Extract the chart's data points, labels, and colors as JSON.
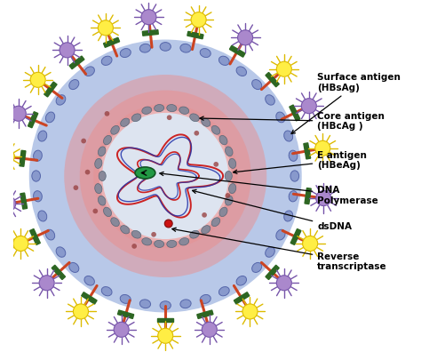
{
  "bg_color": "#ffffff",
  "outer_fill_color": "#b8c8e8",
  "outer_bead_color": "#8899cc",
  "outer_bead_edge": "#5566aa",
  "pink_glow_color": "#e89090",
  "pink_glow2_color": "#f0b8b8",
  "capsid_interior_color": "#dde4f0",
  "capsid_bead_color": "#888899",
  "capsid_bead_edge": "#556677",
  "dna_color1": "#cc2222",
  "dna_color2": "#2233aa",
  "green_dot_color": "#229944",
  "green_dot_edge": "#115522",
  "red_dot_color": "#cc1111",
  "red_dot_edge": "#881111",
  "spike_stem_color": "#cc4422",
  "spike_green_color": "#2d6622",
  "spike_yellow_color": "#ddbb00",
  "spike_yellow_center": "#ffee44",
  "spike_purple_color": "#7755aa",
  "spike_purple_center": "#aa88cc",
  "small_dot_color": "#994444",
  "labels": {
    "surface_antigen": "Surface antigen\n(HBsAg)",
    "core_antigen": "Core antigen\n(HBcAg )",
    "e_antigen": "E antigen\n(HBeAg)",
    "dna_polymerase": "DNA\nPolymerase",
    "dsdna": "dsDNA",
    "reverse_transcriptase": "Reverse\ntranscriptase"
  },
  "label_fontsize": 7.5
}
